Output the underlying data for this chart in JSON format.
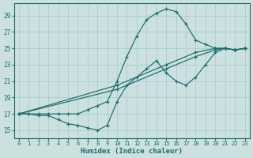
{
  "xlabel": "Humidex (Indice chaleur)",
  "xlim": [
    -0.5,
    23.5
  ],
  "ylim": [
    14.0,
    30.5
  ],
  "xticks": [
    0,
    1,
    2,
    3,
    4,
    5,
    6,
    7,
    8,
    9,
    10,
    11,
    12,
    13,
    14,
    15,
    16,
    17,
    18,
    19,
    20,
    21,
    22,
    23
  ],
  "yticks": [
    15,
    17,
    19,
    21,
    23,
    25,
    27,
    29
  ],
  "bg_color": "#cce0e0",
  "grid_color": "#a8cece",
  "line_color": "#1a6b6b",
  "curves": [
    {
      "x": [
        0,
        1,
        2,
        3,
        4,
        5,
        6,
        7,
        8,
        9,
        10,
        11,
        12,
        13,
        14,
        15,
        16,
        17,
        18,
        19,
        20,
        21,
        22,
        23
      ],
      "y": [
        17,
        17,
        16.8,
        16.8,
        16.3,
        15.8,
        15.6,
        15.3,
        15.0,
        15.6,
        18.5,
        20.5,
        21.5,
        22.5,
        23.5,
        22.0,
        21.0,
        20.5,
        21.5,
        23.0,
        24.5,
        25.0,
        24.8,
        25.0
      ]
    },
    {
      "x": [
        0,
        1,
        2,
        3,
        4,
        5,
        6,
        7,
        8,
        9,
        10,
        11,
        12,
        13,
        14,
        15,
        16,
        17,
        18,
        19,
        20,
        21,
        22,
        23
      ],
      "y": [
        17,
        17,
        17,
        17,
        17,
        17,
        17,
        17.5,
        18,
        18.5,
        21.0,
        24.0,
        26.5,
        28.5,
        29.3,
        29.8,
        29.5,
        28.0,
        26.0,
        25.5,
        25.0,
        25.0,
        24.8,
        25.0
      ]
    },
    {
      "x": [
        0,
        10,
        15,
        18,
        20,
        21,
        22,
        23
      ],
      "y": [
        17,
        20.5,
        23.0,
        24.5,
        25.0,
        25.0,
        24.8,
        25.0
      ]
    },
    {
      "x": [
        0,
        10,
        15,
        18,
        20,
        21,
        22,
        23
      ],
      "y": [
        17,
        20.0,
        22.5,
        24.0,
        24.8,
        25.0,
        24.8,
        25.0
      ]
    }
  ]
}
